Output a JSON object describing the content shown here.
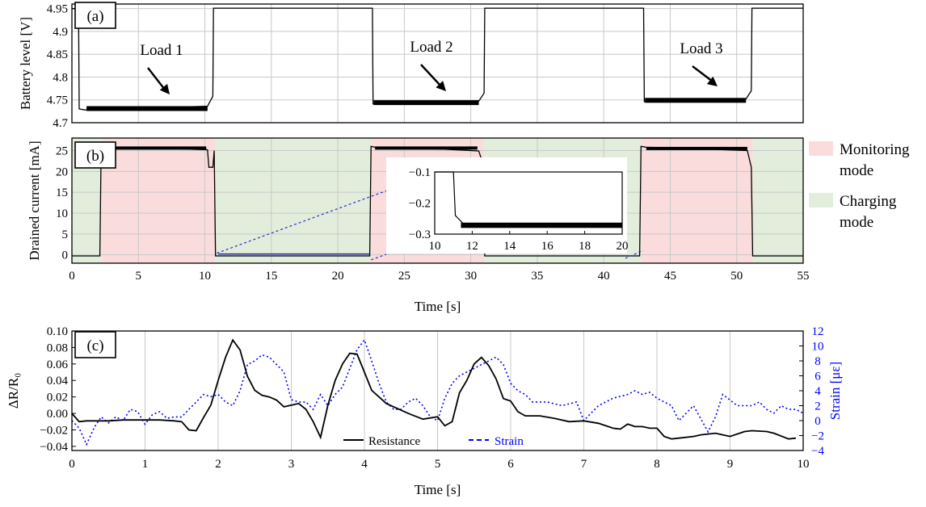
{
  "chart_data": [
    {
      "panel": "(a)",
      "type": "line",
      "ylabel": "Battery level [V]",
      "xlim": [
        0,
        55
      ],
      "ylim": [
        4.7,
        4.96
      ],
      "yticks": [
        "4.7",
        "4.75",
        "4.8",
        "4.85",
        "4.9",
        "4.95"
      ],
      "grid": true,
      "annotations": [
        "Load 1",
        "Load 2",
        "Load 3"
      ],
      "series": [
        {
          "x": [
            0,
            0.5,
            0.55,
            1,
            3,
            5,
            7,
            9,
            10.2,
            10.6,
            10.65,
            13,
            16,
            19,
            22.2,
            22.6,
            22.65,
            25,
            28,
            30.6,
            31,
            31.05,
            34,
            37,
            40,
            42.7,
            43,
            43.05,
            46,
            49,
            50.7,
            51.1,
            51.15,
            55
          ],
          "y": [
            4.95,
            4.95,
            4.73,
            4.728,
            4.73,
            4.731,
            4.733,
            4.735,
            4.736,
            4.758,
            4.951,
            4.951,
            4.951,
            4.951,
            4.951,
            4.951,
            4.741,
            4.742,
            4.744,
            4.747,
            4.765,
            4.951,
            4.951,
            4.951,
            4.951,
            4.951,
            4.951,
            4.746,
            4.748,
            4.75,
            4.752,
            4.77,
            4.951,
            4.951
          ]
        }
      ]
    },
    {
      "panel": "(b)",
      "type": "line",
      "xlabel": "Time [s]",
      "ylabel": "Drained current [mA]",
      "xlim": [
        0,
        55
      ],
      "ylim": [
        -2,
        28
      ],
      "xticks": [
        "0",
        "5",
        "10",
        "15",
        "20",
        "25",
        "30",
        "35",
        "40",
        "45",
        "50",
        "55"
      ],
      "yticks": [
        "0",
        "5",
        "10",
        "15",
        "20",
        "25"
      ],
      "grid": true,
      "legend": {
        "position": "right",
        "entries": [
          {
            "label_line1": "Monitoring",
            "label_line2": "mode",
            "color": "#fadcdc"
          },
          {
            "label_line1": "Charging",
            "label_line2": "mode",
            "color": "#e2eedb"
          }
        ]
      },
      "regions": [
        {
          "mode": "charging",
          "x": [
            0,
            2.2
          ]
        },
        {
          "mode": "monitoring",
          "x": [
            2.2,
            10.8
          ]
        },
        {
          "mode": "charging",
          "x": [
            10.8,
            22.5
          ]
        },
        {
          "mode": "monitoring",
          "x": [
            22.5,
            31
          ]
        },
        {
          "mode": "charging",
          "x": [
            31,
            42.8
          ]
        },
        {
          "mode": "monitoring",
          "x": [
            42.8,
            51.2
          ]
        },
        {
          "mode": "charging",
          "x": [
            51.2,
            55
          ]
        }
      ],
      "series": [
        {
          "x": [
            0,
            2.1,
            2.2,
            2.6,
            5,
            8,
            10.2,
            10.3,
            10.6,
            10.7,
            10.8,
            22.4,
            22.5,
            22.8,
            25,
            28,
            30.6,
            31,
            31.05,
            42.7,
            42.8,
            43.2,
            46,
            49,
            50.8,
            51.1,
            51.2,
            55
          ],
          "y": [
            -0.25,
            -0.25,
            26,
            25.8,
            25.6,
            25.4,
            25.2,
            21,
            21,
            25,
            -0.25,
            -0.25,
            26,
            25.8,
            25.6,
            25.3,
            24.9,
            21,
            -0.25,
            -0.25,
            26,
            25.8,
            25.6,
            25.2,
            25,
            21,
            -0.25,
            -0.25
          ]
        }
      ],
      "inset": {
        "xlim": [
          10,
          20
        ],
        "ylim": [
          -0.3,
          -0.1
        ],
        "xticks": [
          "10",
          "12",
          "14",
          "16",
          "18",
          "20"
        ],
        "yticks": [
          "-0.1",
          "-0.2",
          "-0.3"
        ],
        "x": [
          10,
          11,
          11.1,
          11.5,
          13,
          15,
          17,
          19,
          20
        ],
        "y": [
          -0.1,
          -0.1,
          -0.24,
          -0.265,
          -0.27,
          -0.272,
          -0.27,
          -0.268,
          -0.265
        ]
      }
    },
    {
      "panel": "(c)",
      "type": "line",
      "xlabel": "Time [s]",
      "ylabel": "ΔR/R₀",
      "ylabel_right": "Strain [με]",
      "xlim": [
        0,
        10
      ],
      "ylim": [
        -0.045,
        0.1
      ],
      "ylim_right": [
        -4,
        12
      ],
      "xticks": [
        "0",
        "1",
        "2",
        "3",
        "4",
        "5",
        "6",
        "7",
        "8",
        "9",
        "10"
      ],
      "yticks": [
        "−0.04",
        "−0.02",
        "0.00",
        "0.02",
        "0.04",
        "0.06",
        "0.08",
        "0.10"
      ],
      "yticks_right": [
        "−4",
        "−2",
        "0",
        "2",
        "4",
        "6",
        "8",
        "10",
        "12"
      ],
      "grid": true,
      "legend": {
        "position": "bottom-center"
      },
      "series": [
        {
          "name": "Resistance",
          "axis": "left",
          "color": "#000000",
          "x": [
            0,
            0.1,
            0.2,
            0.3,
            0.5,
            0.7,
            1.0,
            1.2,
            1.4,
            1.5,
            1.6,
            1.7,
            1.8,
            1.9,
            2.0,
            2.1,
            2.2,
            2.3,
            2.4,
            2.5,
            2.6,
            2.7,
            2.8,
            2.9,
            3.0,
            3.1,
            3.2,
            3.3,
            3.4,
            3.5,
            3.6,
            3.7,
            3.8,
            3.9,
            4.0,
            4.1,
            4.2,
            4.3,
            4.4,
            4.6,
            4.8,
            5.0,
            5.1,
            5.2,
            5.3,
            5.4,
            5.5,
            5.6,
            5.7,
            5.8,
            5.9,
            6.0,
            6.1,
            6.2,
            6.4,
            6.6,
            6.8,
            7.0,
            7.2,
            7.4,
            7.5,
            7.6,
            7.7,
            7.8,
            7.9,
            8.0,
            8.1,
            8.2,
            8.3,
            8.5,
            8.6,
            8.8,
            9.0,
            9.2,
            9.3,
            9.5,
            9.6,
            9.8,
            9.9
          ],
          "y": [
            0.0,
            -0.01,
            -0.009,
            -0.009,
            -0.009,
            -0.008,
            -0.008,
            -0.008,
            -0.009,
            -0.01,
            -0.02,
            -0.021,
            -0.005,
            0.01,
            0.04,
            0.068,
            0.089,
            0.077,
            0.045,
            0.028,
            0.022,
            0.02,
            0.016,
            0.008,
            0.01,
            0.012,
            0.005,
            -0.01,
            -0.029,
            0.01,
            0.04,
            0.06,
            0.073,
            0.072,
            0.05,
            0.028,
            0.02,
            0.012,
            0.008,
            0.0,
            -0.007,
            -0.004,
            -0.015,
            -0.01,
            0.025,
            0.04,
            0.06,
            0.068,
            0.058,
            0.042,
            0.018,
            0.015,
            0.002,
            -0.003,
            -0.003,
            -0.006,
            -0.01,
            -0.009,
            -0.012,
            -0.018,
            -0.019,
            -0.013,
            -0.016,
            -0.016,
            -0.018,
            -0.018,
            -0.028,
            -0.031,
            -0.03,
            -0.028,
            -0.026,
            -0.024,
            -0.028,
            -0.022,
            -0.021,
            -0.022,
            -0.024,
            -0.031,
            -0.03
          ]
        },
        {
          "name": "Strain",
          "axis": "right",
          "color": "#0000ff",
          "x": [
            0,
            0.1,
            0.2,
            0.3,
            0.4,
            0.5,
            0.6,
            0.7,
            0.8,
            0.9,
            1.0,
            1.1,
            1.2,
            1.3,
            1.4,
            1.5,
            1.6,
            1.7,
            1.8,
            1.9,
            2.0,
            2.1,
            2.2,
            2.3,
            2.4,
            2.5,
            2.6,
            2.7,
            2.8,
            2.9,
            3.0,
            3.1,
            3.2,
            3.3,
            3.4,
            3.5,
            3.6,
            3.7,
            3.8,
            3.9,
            4.0,
            4.1,
            4.2,
            4.3,
            4.4,
            4.5,
            4.6,
            4.7,
            4.8,
            4.9,
            5.0,
            5.1,
            5.2,
            5.3,
            5.4,
            5.5,
            5.6,
            5.7,
            5.8,
            5.9,
            6.0,
            6.1,
            6.2,
            6.3,
            6.5,
            6.7,
            6.9,
            7.0,
            7.2,
            7.4,
            7.6,
            7.7,
            7.8,
            7.9,
            8.0,
            8.2,
            8.3,
            8.5,
            8.7,
            8.8,
            8.9,
            9.1,
            9.3,
            9.4,
            9.5,
            9.6,
            9.7,
            9.8,
            9.9,
            10.0
          ],
          "y": [
            0,
            -1,
            -3.2,
            -1,
            0.5,
            -0.3,
            0.5,
            0,
            1.5,
            1.2,
            -0.5,
            0.8,
            1.2,
            0.3,
            0.5,
            0.5,
            1.5,
            2.5,
            3.5,
            3.2,
            3.5,
            2.5,
            2.0,
            4.0,
            7.5,
            8.0,
            8.8,
            8.5,
            7.5,
            6.5,
            2.8,
            2.5,
            2.5,
            1.5,
            3.5,
            2.0,
            3.5,
            4.5,
            7.0,
            9.5,
            10.8,
            8.0,
            5.0,
            2.5,
            1.5,
            1.5,
            2.5,
            3.0,
            2.0,
            0.5,
            0.0,
            3.0,
            5.0,
            6.0,
            6.5,
            7.0,
            7.5,
            8.0,
            8.5,
            7.5,
            5.0,
            4.0,
            3.5,
            2.5,
            2.5,
            2.0,
            2.5,
            0.0,
            2.0,
            3.0,
            3.5,
            4.0,
            3.5,
            3.8,
            3.0,
            2.0,
            0.0,
            2.0,
            -1.5,
            0.5,
            3.5,
            2.0,
            2.0,
            2.5,
            1.5,
            1.0,
            2.0,
            1.5,
            1.5,
            1.0
          ]
        }
      ]
    }
  ]
}
